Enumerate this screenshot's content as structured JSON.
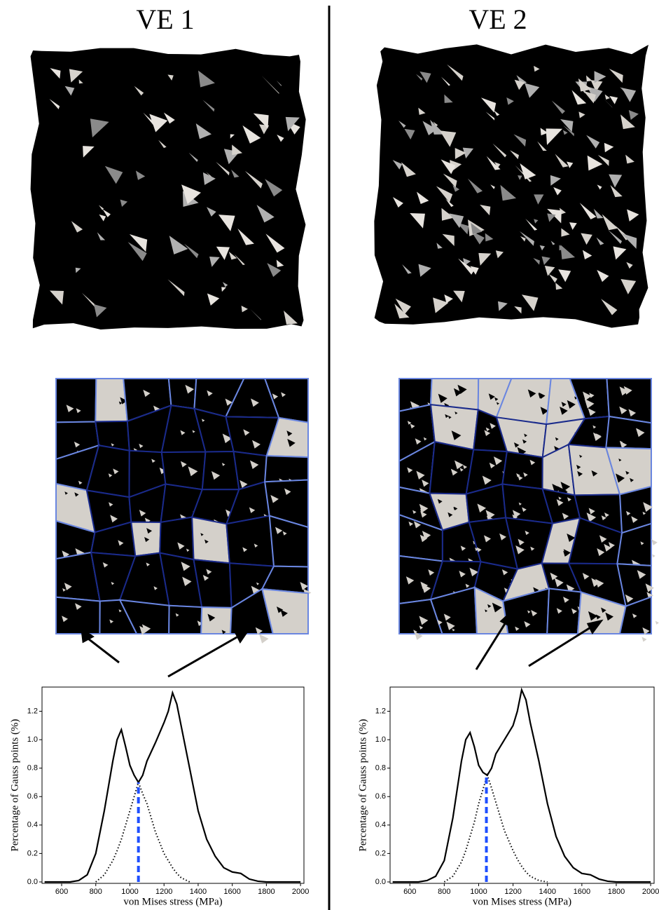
{
  "chart_data": [
    {
      "type": "line",
      "title": "VE 1",
      "x_label": "von Mises stress (MPa)",
      "y_label": "Percentage of Gauss points (%)",
      "x": [
        500,
        550,
        600,
        650,
        700,
        750,
        800,
        850,
        900,
        925,
        950,
        975,
        1000,
        1025,
        1050,
        1075,
        1100,
        1150,
        1200,
        1225,
        1250,
        1275,
        1300,
        1350,
        1400,
        1450,
        1500,
        1550,
        1600,
        1650,
        1700,
        1750,
        1800,
        1900,
        2000
      ],
      "series": [
        {
          "color": "#000000",
          "style": "solid",
          "values": [
            0,
            0,
            0,
            0,
            0.01,
            0.05,
            0.2,
            0.5,
            0.85,
            1.0,
            1.07,
            0.95,
            0.82,
            0.75,
            0.7,
            0.75,
            0.85,
            0.98,
            1.12,
            1.2,
            1.33,
            1.25,
            1.1,
            0.8,
            0.5,
            0.3,
            0.18,
            0.1,
            0.07,
            0.06,
            0.02,
            0.005,
            0,
            0,
            0
          ]
        },
        {
          "color": "#000000",
          "style": "dotted",
          "values": [
            null,
            null,
            null,
            null,
            null,
            null,
            0,
            0.05,
            0.15,
            0.22,
            0.3,
            0.4,
            0.5,
            0.6,
            0.7,
            0.62,
            0.55,
            0.35,
            0.2,
            0.15,
            0.1,
            0.06,
            0.03,
            0,
            null,
            null,
            null,
            null,
            null,
            null,
            null,
            null,
            null,
            null,
            null
          ]
        }
      ],
      "vline": {
        "x": 1050,
        "y": 0.7,
        "color": "#1f4fff"
      },
      "xlim": [
        485,
        2020
      ],
      "ylim": [
        -0.01,
        1.37
      ],
      "xticks": [
        600,
        800,
        1000,
        1200,
        1400,
        1600,
        1800,
        2000
      ],
      "yticks": [
        {
          "value": 0,
          "label": "0.0"
        },
        0.2,
        0.4,
        0.6,
        0.8,
        {
          "value": 1,
          "label": "1.0"
        },
        1.2
      ]
    },
    {
      "type": "line",
      "title": "VE 2",
      "x_label": "von Mises stress (MPa)",
      "y_label": "Percentage of Gauss points (%)",
      "x": [
        500,
        550,
        600,
        650,
        700,
        750,
        800,
        850,
        900,
        925,
        950,
        975,
        1000,
        1025,
        1050,
        1075,
        1100,
        1150,
        1200,
        1225,
        1250,
        1275,
        1300,
        1350,
        1400,
        1450,
        1500,
        1550,
        1600,
        1650,
        1700,
        1750,
        1800,
        1900,
        2000
      ],
      "series": [
        {
          "color": "#000000",
          "style": "solid",
          "values": [
            0,
            0,
            0,
            0,
            0.01,
            0.04,
            0.15,
            0.45,
            0.85,
            1.0,
            1.05,
            0.95,
            0.82,
            0.77,
            0.75,
            0.8,
            0.9,
            1.0,
            1.1,
            1.2,
            1.35,
            1.28,
            1.12,
            0.85,
            0.55,
            0.32,
            0.18,
            0.1,
            0.06,
            0.05,
            0.02,
            0.005,
            0,
            0,
            0
          ]
        },
        {
          "color": "#000000",
          "style": "dotted",
          "values": [
            null,
            null,
            null,
            null,
            null,
            null,
            0,
            0.04,
            0.14,
            0.22,
            0.32,
            0.42,
            0.55,
            0.65,
            0.75,
            0.66,
            0.56,
            0.36,
            0.22,
            0.16,
            0.11,
            0.07,
            0.04,
            0.01,
            0,
            null,
            null,
            null,
            null,
            null,
            null,
            null,
            null,
            null,
            null
          ]
        }
      ],
      "vline": {
        "x": 1045,
        "y": 0.75,
        "color": "#1f4fff"
      },
      "xlim": [
        485,
        2020
      ],
      "ylim": [
        -0.01,
        1.37
      ],
      "xticks": [
        600,
        800,
        1000,
        1200,
        1400,
        1600,
        1800,
        2000
      ],
      "yticks": [
        {
          "value": 0,
          "label": "0.0"
        },
        0.2,
        0.4,
        0.6,
        0.8,
        {
          "value": 1,
          "label": "1.0"
        },
        1.2
      ]
    }
  ]
}
